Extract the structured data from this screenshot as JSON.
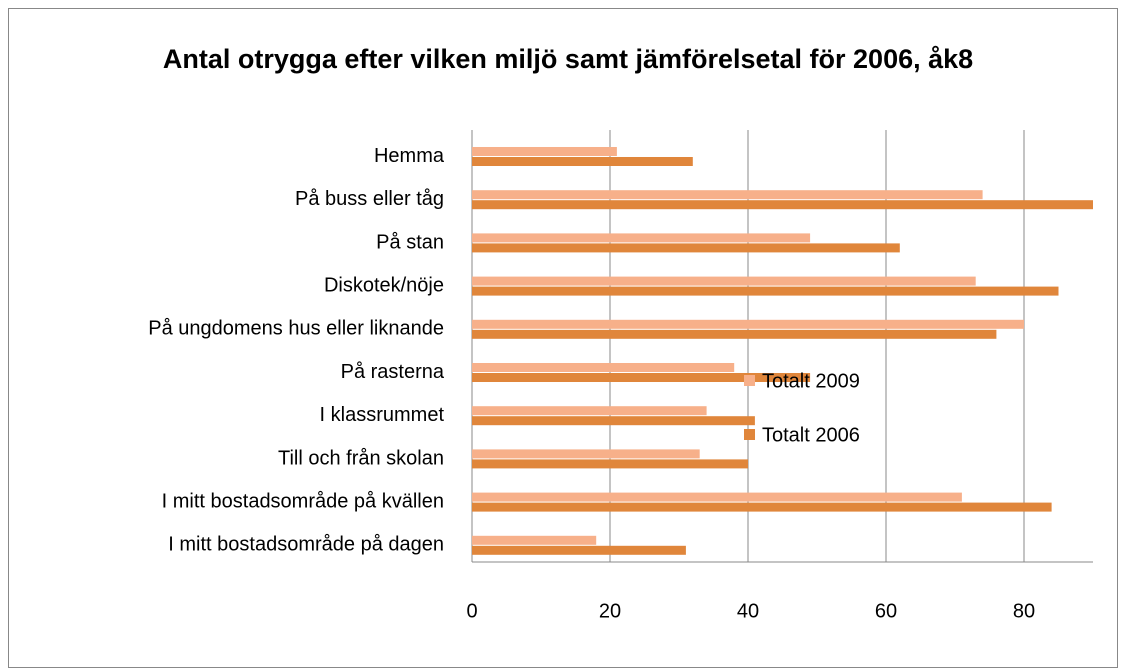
{
  "chart_data": {
    "type": "bar",
    "orientation": "horizontal",
    "title": "Antal otrygga efter vilken miljö samt jämförelsetal för 2006, åk8",
    "categories": [
      "Hemma",
      "På buss eller tåg",
      "På stan",
      "Diskotek/nöje",
      "På ungdomens hus eller liknande",
      "På rasterna",
      "I klassrummet",
      "Till och från skolan",
      "I mitt bostadsområde på kvällen",
      "I mitt bostadsområde på dagen"
    ],
    "series": [
      {
        "name": "Totalt 2009",
        "color": "#f7b08a",
        "values": [
          21,
          74,
          49,
          73,
          80,
          38,
          34,
          33,
          71,
          18
        ]
      },
      {
        "name": "Totalt 2006",
        "color": "#e0863b",
        "values": [
          32,
          90,
          62,
          85,
          76,
          49,
          41,
          40,
          84,
          31
        ]
      }
    ],
    "xlim": [
      0,
      90
    ],
    "xticks": [
      0,
      20,
      40,
      60,
      80
    ],
    "grid": true,
    "legend": "right"
  }
}
